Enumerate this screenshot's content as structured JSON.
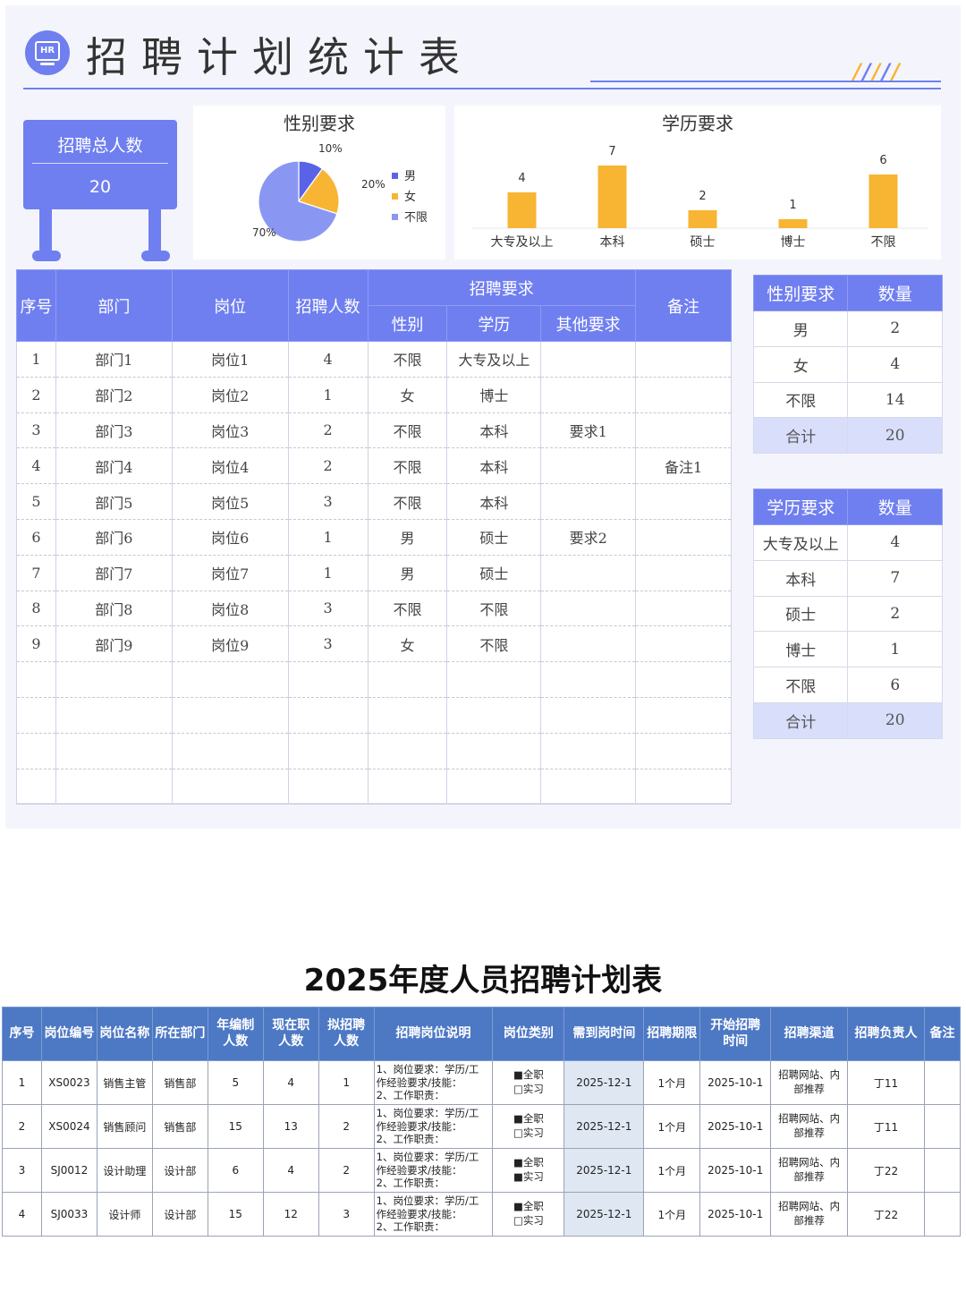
{
  "header": {
    "badge": "HR",
    "title": "招聘计划统计表"
  },
  "total": {
    "label": "招聘总人数",
    "value": "20"
  },
  "gender_chart": {
    "title": "性别要求",
    "legend": [
      "男",
      "女",
      "不限"
    ],
    "labels": [
      "10%",
      "20%",
      "70%"
    ],
    "colors": [
      "#5a63e8",
      "#f7b533",
      "#8a97f2"
    ]
  },
  "edu_chart": {
    "title": "学历要求",
    "bar_color": "#f7b533"
  },
  "chart_data": [
    {
      "type": "pie",
      "title": "性别要求",
      "categories": [
        "男",
        "女",
        "不限"
      ],
      "values": [
        10,
        20,
        70
      ]
    },
    {
      "type": "bar",
      "title": "学历要求",
      "categories": [
        "大专及以上",
        "本科",
        "硕士",
        "博士",
        "不限"
      ],
      "values": [
        4,
        7,
        2,
        1,
        6
      ]
    }
  ],
  "plan_table": {
    "headers": {
      "index": "序号",
      "dept": "部门",
      "post": "岗位",
      "count": "招聘人数",
      "req": "招聘要求",
      "gender": "性别",
      "edu": "学历",
      "other": "其他要求",
      "note": "备注"
    },
    "rows": [
      [
        "1",
        "部门1",
        "岗位1",
        "4",
        "不限",
        "大专及以上",
        "",
        ""
      ],
      [
        "2",
        "部门2",
        "岗位2",
        "1",
        "女",
        "博士",
        "",
        ""
      ],
      [
        "3",
        "部门3",
        "岗位3",
        "2",
        "不限",
        "本科",
        "要求1",
        ""
      ],
      [
        "4",
        "部门4",
        "岗位4",
        "2",
        "不限",
        "本科",
        "",
        "备注1"
      ],
      [
        "5",
        "部门5",
        "岗位5",
        "3",
        "不限",
        "本科",
        "",
        ""
      ],
      [
        "6",
        "部门6",
        "岗位6",
        "1",
        "男",
        "硕士",
        "要求2",
        ""
      ],
      [
        "7",
        "部门7",
        "岗位7",
        "1",
        "男",
        "硕士",
        "",
        ""
      ],
      [
        "8",
        "部门8",
        "岗位8",
        "3",
        "不限",
        "不限",
        "",
        ""
      ],
      [
        "9",
        "部门9",
        "岗位9",
        "3",
        "女",
        "不限",
        "",
        ""
      ],
      [
        "",
        "",
        "",
        "",
        "",
        "",
        "",
        ""
      ],
      [
        "",
        "",
        "",
        "",
        "",
        "",
        "",
        ""
      ],
      [
        "",
        "",
        "",
        "",
        "",
        "",
        "",
        ""
      ],
      [
        "",
        "",
        "",
        "",
        "",
        "",
        "",
        ""
      ]
    ]
  },
  "gender_table": {
    "headers": [
      "性别要求",
      "数量"
    ],
    "rows": [
      [
        "男",
        "2"
      ],
      [
        "女",
        "4"
      ],
      [
        "不限",
        "14"
      ]
    ],
    "total": [
      "合计",
      "20"
    ]
  },
  "edu_table": {
    "headers": [
      "学历要求",
      "数量"
    ],
    "rows": [
      [
        "大专及以上",
        "4"
      ],
      [
        "本科",
        "7"
      ],
      [
        "硕士",
        "2"
      ],
      [
        "博士",
        "1"
      ],
      [
        "不限",
        "6"
      ]
    ],
    "total": [
      "合计",
      "20"
    ]
  },
  "plan2": {
    "title": "2025年度人员招聘计划表",
    "headers": [
      [
        "序号"
      ],
      [
        "岗位编号"
      ],
      [
        "岗位名称"
      ],
      [
        "所在部门"
      ],
      [
        "年编制",
        "人数"
      ],
      [
        "现在职",
        "人数"
      ],
      [
        "拟招聘",
        "人数"
      ],
      [
        "招聘岗位说明"
      ],
      [
        "岗位类别"
      ],
      [
        "需到岗时间"
      ],
      [
        "招聘期限"
      ],
      [
        "开始招聘",
        "时间"
      ],
      [
        "招聘渠道"
      ],
      [
        "招聘负责人"
      ],
      [
        "备注"
      ]
    ],
    "rows": [
      {
        "idx": "1",
        "code": "XS0023",
        "name": "销售主管",
        "dept": "销售部",
        "quota": "5",
        "current": "4",
        "plan": "1",
        "desc": [
          "1、岗位要求：学历/工",
          "作经验要求/技能：",
          "2、工作职责："
        ],
        "type": [
          "■全职",
          "□实习"
        ],
        "due": "2025-12-1",
        "period": "1个月",
        "start": "2025-10-1",
        "channel": [
          "招聘网站、内",
          "部推荐"
        ],
        "owner": "丁11",
        "note": ""
      },
      {
        "idx": "2",
        "code": "XS0024",
        "name": "销售顾问",
        "dept": "销售部",
        "quota": "15",
        "current": "13",
        "plan": "2",
        "desc": [
          "1、岗位要求：学历/工",
          "作经验要求/技能：",
          "2、工作职责："
        ],
        "type": [
          "■全职",
          "□实习"
        ],
        "due": "2025-12-1",
        "period": "1个月",
        "start": "2025-10-1",
        "channel": [
          "招聘网站、内",
          "部推荐"
        ],
        "owner": "丁11",
        "note": ""
      },
      {
        "idx": "3",
        "code": "SJ0012",
        "name": "设计助理",
        "dept": "设计部",
        "quota": "6",
        "current": "4",
        "plan": "2",
        "desc": [
          "1、岗位要求：学历/工",
          "作经验要求/技能：",
          "2、工作职责："
        ],
        "type": [
          "■全职",
          "■实习"
        ],
        "due": "2025-12-1",
        "period": "1个月",
        "start": "2025-10-1",
        "channel": [
          "招聘网站、内",
          "部推荐"
        ],
        "owner": "丁22",
        "note": ""
      },
      {
        "idx": "4",
        "code": "SJ0033",
        "name": "设计师",
        "dept": "设计部",
        "quota": "15",
        "current": "12",
        "plan": "3",
        "desc": [
          "1、岗位要求：学历/工",
          "作经验要求/技能：",
          "2、工作职责："
        ],
        "type": [
          "■全职",
          "□实习"
        ],
        "due": "2025-12-1",
        "period": "1个月",
        "start": "2025-10-1",
        "channel": [
          "招聘网站、内",
          "部推荐"
        ],
        "owner": "丁22",
        "note": ""
      }
    ]
  }
}
